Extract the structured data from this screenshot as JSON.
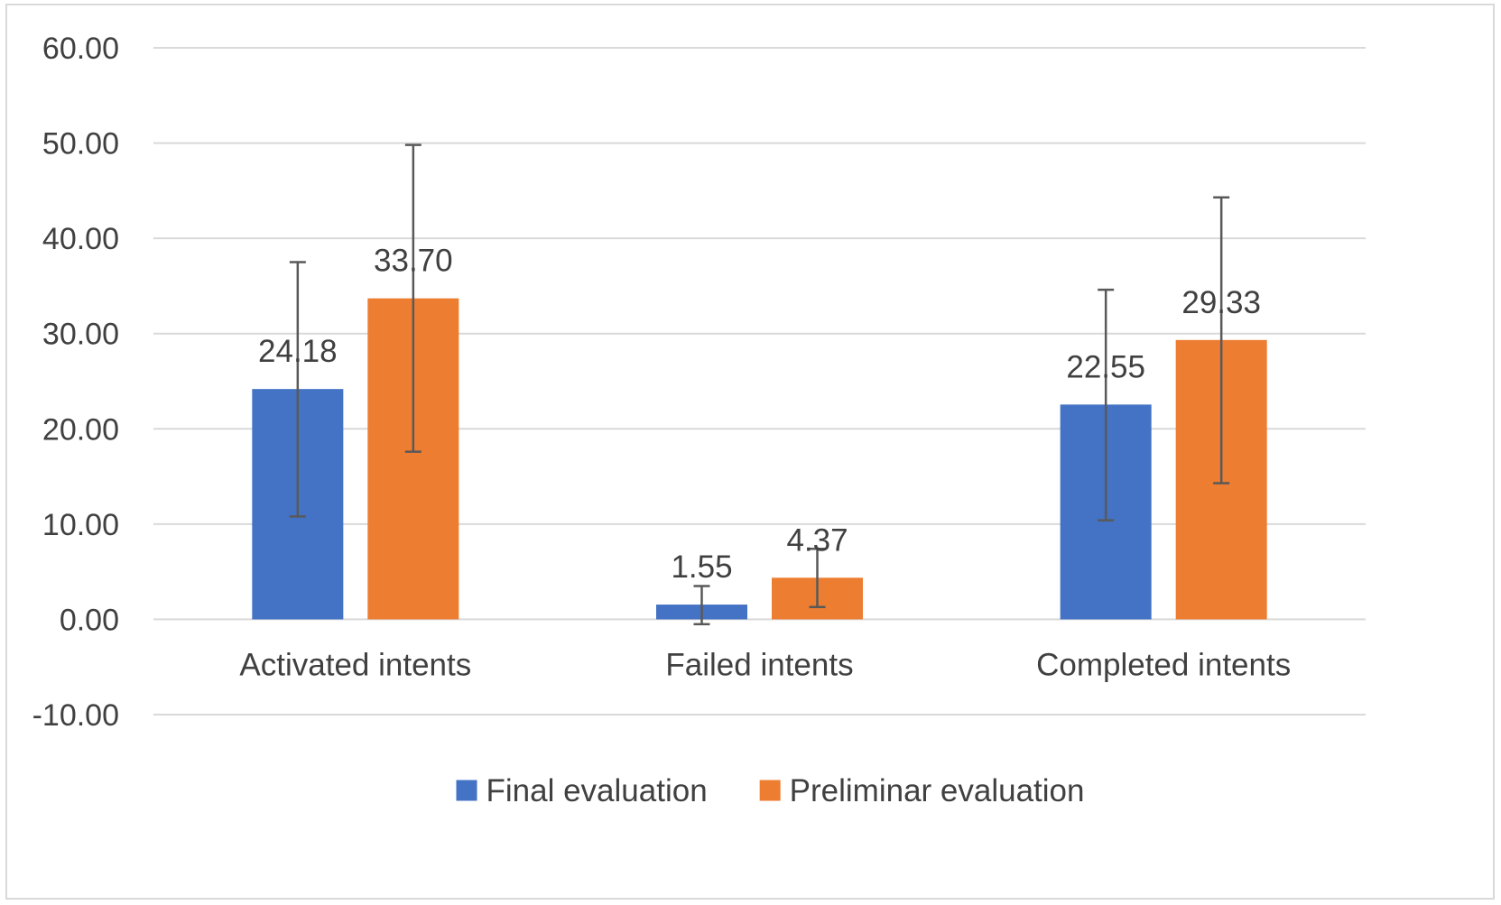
{
  "chart_data": {
    "type": "bar",
    "title": "",
    "xlabel": "",
    "ylabel": "",
    "categories": [
      "Activated intents",
      "Failed intents",
      "Completed intents"
    ],
    "series": [
      {
        "name": "Final evaluation",
        "color": "#4472c4",
        "values": [
          24.18,
          1.55,
          22.55
        ],
        "value_labels": [
          "24.18",
          "1.55",
          "22.55"
        ],
        "error_low": [
          10.8,
          -0.5,
          10.4
        ],
        "error_high": [
          37.5,
          3.5,
          34.6
        ]
      },
      {
        "name": "Preliminar evaluation",
        "color": "#ed7d31",
        "values": [
          33.7,
          4.37,
          29.33
        ],
        "value_labels": [
          "33.70",
          "4.37",
          "29.33"
        ],
        "error_low": [
          17.6,
          1.3,
          14.3
        ],
        "error_high": [
          49.8,
          7.4,
          44.3
        ]
      }
    ],
    "ylim": [
      -10,
      60
    ],
    "yticks": [
      -10,
      0,
      10,
      20,
      30,
      40,
      50,
      60
    ],
    "ytick_labels": [
      "-10.00",
      "0.00",
      "10.00",
      "20.00",
      "30.00",
      "40.00",
      "50.00",
      "60.00"
    ],
    "grid": true,
    "legend_position": "bottom",
    "gridline_color": "#d9d9d9",
    "errorbar_color": "#595959"
  }
}
